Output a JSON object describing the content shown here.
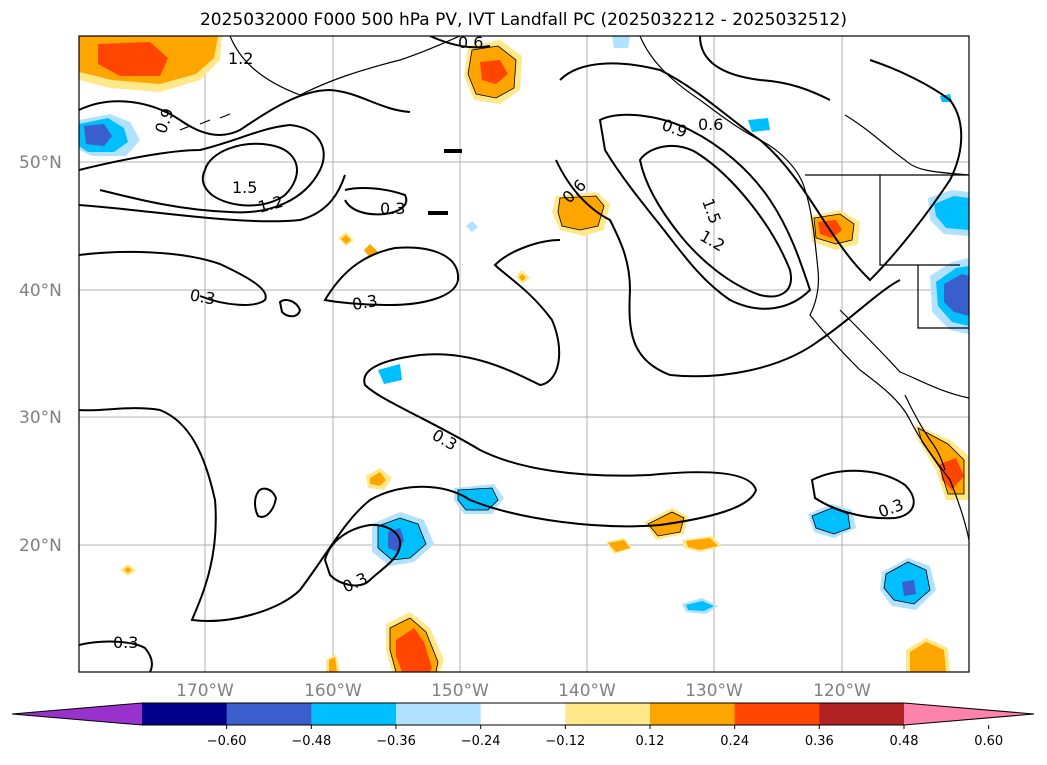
{
  "title": "2025032000 F000 500 hPa PV, IVT Landfall PC (2025032212 - 2025032512)",
  "map": {
    "lat_ticks": [
      "50°N",
      "40°N",
      "30°N",
      "20°N"
    ],
    "lon_ticks": [
      "170°W",
      "160°W",
      "150°W",
      "140°W",
      "130°W",
      "120°W"
    ],
    "contour_labels": [
      "1.2",
      "0.6",
      "0.9",
      "1.5",
      "1.2",
      "0.3",
      "0.6",
      "0.9",
      "0.6",
      "1.5",
      "1.2",
      "0.3",
      "0.3",
      "0.3",
      "0.3",
      "0.3",
      "0.3"
    ]
  },
  "colorbar": {
    "ticks": [
      "−0.60",
      "−0.48",
      "−0.36",
      "−0.24",
      "−0.12",
      "0.12",
      "0.24",
      "0.36",
      "0.48",
      "0.60"
    ],
    "colors": [
      "#9932cc",
      "#00008b",
      "#3a5fcd",
      "#00bfff",
      "#b0e2ff",
      "#ffffff",
      "#ffe88a",
      "#ffa500",
      "#ff4500",
      "#b22222",
      "#ff82ab"
    ]
  }
}
